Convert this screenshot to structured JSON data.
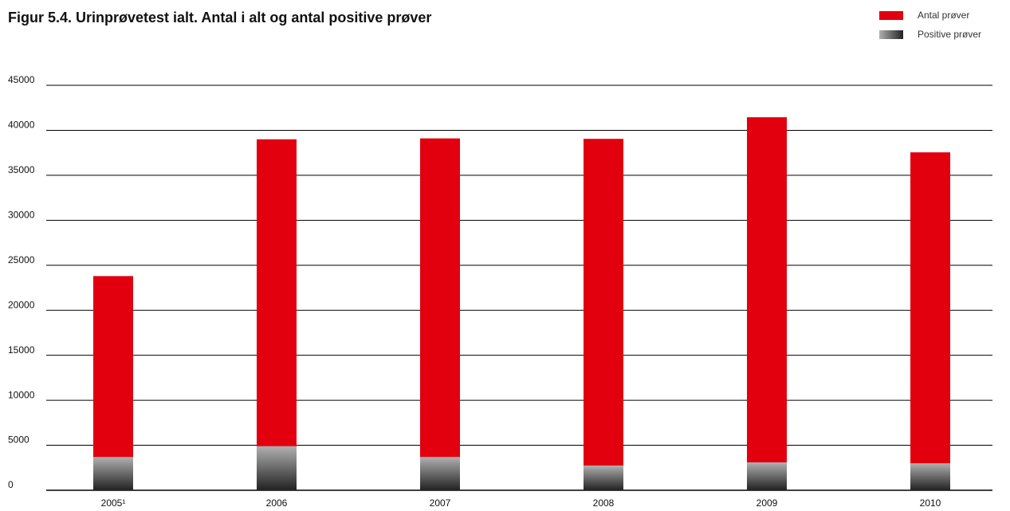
{
  "chart_data": {
    "type": "bar",
    "barmode": "overlay",
    "title": "Figur 5.4. Urinprøvetest ialt. Antal i alt og antal positive prøver",
    "categories": [
      "2005¹",
      "2006",
      "2007",
      "2008",
      "2009",
      "2010"
    ],
    "series": [
      {
        "name": "Antal prøver",
        "color": "#e2000f",
        "values": [
          23800,
          39000,
          39100,
          39050,
          41450,
          37550
        ]
      },
      {
        "name": "Positive prøver",
        "color": "#222222",
        "values": [
          3700,
          4900,
          3700,
          2750,
          3100,
          3000
        ]
      }
    ],
    "ylim": [
      0,
      45000
    ],
    "yticks": [
      0,
      5000,
      10000,
      15000,
      20000,
      25000,
      30000,
      35000,
      40000,
      45000
    ],
    "grid": true,
    "legend": "top-right"
  }
}
